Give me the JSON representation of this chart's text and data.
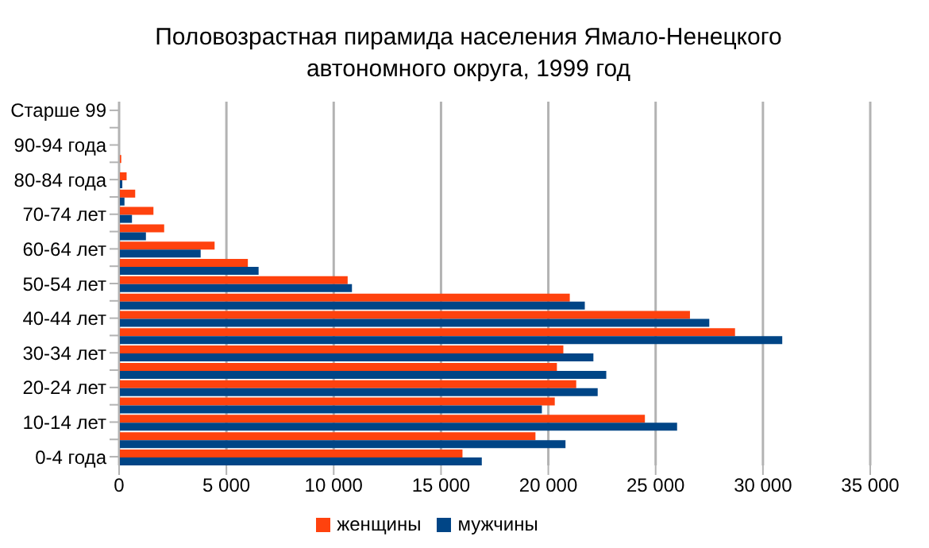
{
  "chart_data": {
    "type": "bar",
    "orientation": "horizontal",
    "title": "Половозрастная пирамида населения Ямало-Ненецкого автономного округа, 1999 год",
    "categories": [
      "Старше 99",
      null,
      "90-94 года",
      null,
      "80-84 года",
      null,
      "70-74 лет",
      null,
      "60-64 лет",
      null,
      "50-54 лет",
      null,
      "40-44 лет",
      null,
      "30-34 лет",
      null,
      "20-24 лет",
      null,
      "10-14 лет",
      null,
      "0-4 года"
    ],
    "series": [
      {
        "name": "женщины",
        "color": "#ff420e",
        "values": [
          30,
          20,
          null,
          100,
          350,
          750,
          1600,
          2100,
          4450,
          6000,
          10650,
          21000,
          26600,
          28700,
          20700,
          20400,
          21300,
          20300,
          24500,
          19400,
          16000
        ]
      },
      {
        "name": "мужчины",
        "color": "#004586",
        "values": [
          0,
          10,
          20,
          30,
          150,
          250,
          600,
          1250,
          3800,
          6500,
          10850,
          21700,
          27500,
          30900,
          22100,
          22700,
          22300,
          19700,
          26000,
          20800,
          16900
        ]
      }
    ],
    "xlim": [
      0,
      35000
    ],
    "xticks": [
      0,
      {
        "value": 5000,
        "label": "5 000"
      },
      {
        "value": 10000,
        "label": "10 000"
      },
      {
        "value": 15000,
        "label": "15 000"
      },
      {
        "value": 20000,
        "label": "20 000"
      },
      {
        "value": 25000,
        "label": "25 000"
      },
      {
        "value": 30000,
        "label": "30 000"
      },
      {
        "value": 35000,
        "label": "35 000"
      }
    ],
    "grid": "x",
    "legend": "bottom"
  }
}
